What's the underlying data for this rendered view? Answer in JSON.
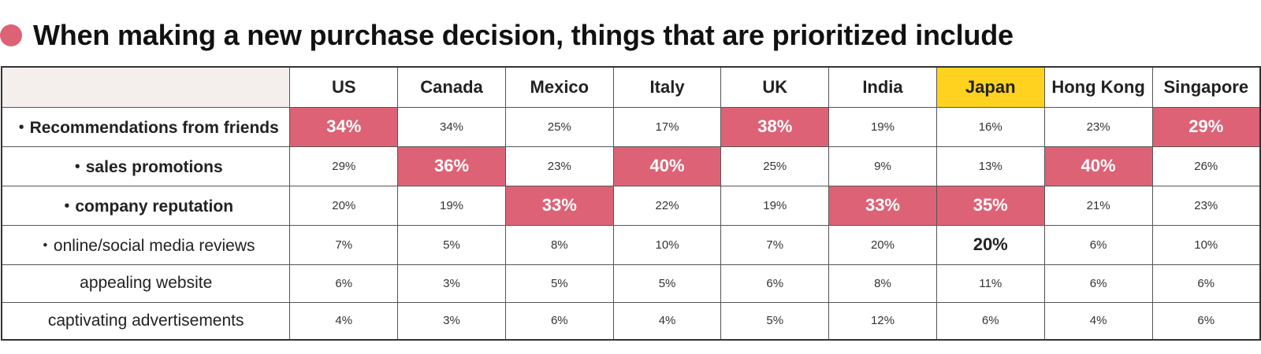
{
  "title": "When making a new purchase decision, things that are prioritized include",
  "colors": {
    "accent": "#dd6275",
    "highlight_column": "#ffd21f",
    "header_corner": "#f4efed"
  },
  "chart_data": {
    "type": "table",
    "columns": [
      "US",
      "Canada",
      "Mexico",
      "Italy",
      "UK",
      "India",
      "Japan",
      "Hong Kong",
      "Singapore"
    ],
    "highlighted_column": "Japan",
    "rows": [
      {
        "label": "・Recommendations from friends",
        "bold": true,
        "values": [
          "34%",
          "34%",
          "25%",
          "17%",
          "38%",
          "19%",
          "16%",
          "23%",
          "29%"
        ],
        "top": [
          0,
          4,
          8
        ]
      },
      {
        "label": "・sales promotions",
        "bold": true,
        "values": [
          "29%",
          "36%",
          "23%",
          "40%",
          "25%",
          "9%",
          "13%",
          "40%",
          "26%"
        ],
        "top": [
          1,
          3,
          7
        ]
      },
      {
        "label": "・company reputation",
        "bold": true,
        "values": [
          "20%",
          "19%",
          "33%",
          "22%",
          "19%",
          "33%",
          "35%",
          "21%",
          "23%"
        ],
        "top": [
          2,
          5,
          6
        ]
      },
      {
        "label": "・online/social media reviews",
        "bold": false,
        "values": [
          "7%",
          "5%",
          "8%",
          "10%",
          "7%",
          "20%",
          "20%",
          "6%",
          "10%"
        ],
        "top": [],
        "emphasized": [
          6
        ]
      },
      {
        "label": "appealing website",
        "bold": false,
        "values": [
          "6%",
          "3%",
          "5%",
          "5%",
          "6%",
          "8%",
          "11%",
          "6%",
          "6%"
        ],
        "top": []
      },
      {
        "label": "captivating advertisements",
        "bold": false,
        "values": [
          "4%",
          "3%",
          "6%",
          "4%",
          "5%",
          "12%",
          "6%",
          "4%",
          "6%"
        ],
        "top": []
      }
    ]
  }
}
